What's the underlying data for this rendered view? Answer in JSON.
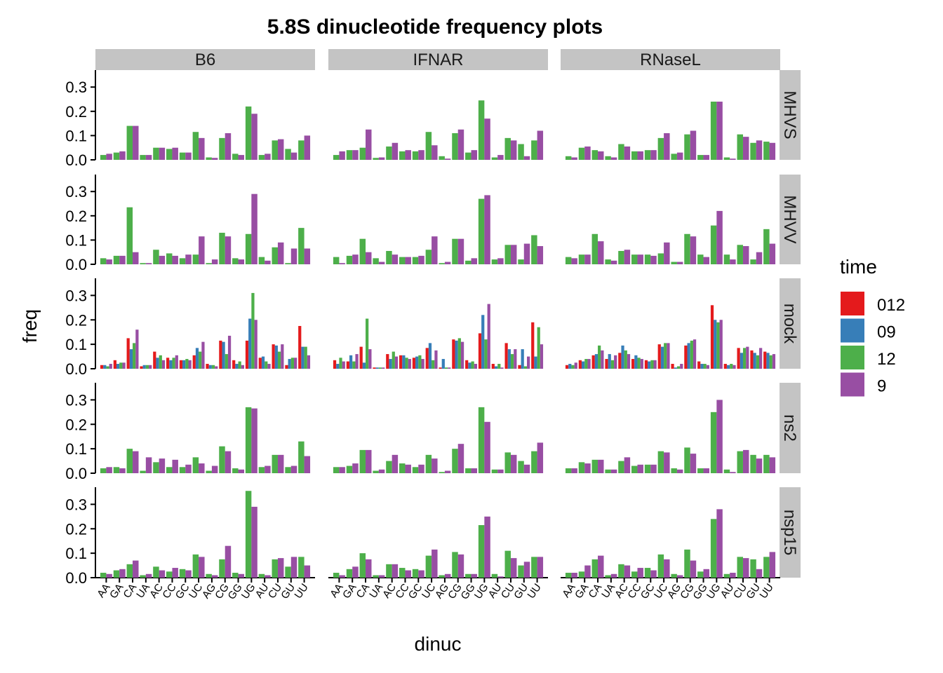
{
  "chart_data": {
    "type": "bar",
    "title": "5.8S dinucleotide frequency plots",
    "xlabel": "dinuc",
    "ylabel": "freq",
    "ylim": [
      0,
      0.37
    ],
    "yticks": [
      0.0,
      0.1,
      0.2,
      0.3
    ],
    "ytick_labels": [
      "0.0",
      "0.1",
      "0.2",
      "0.3"
    ],
    "grid": false,
    "legend_position": "right",
    "legend": {
      "title": "time",
      "entries": [
        {
          "key": "012",
          "label": "012",
          "color": "#E41A1C"
        },
        {
          "key": "09",
          "label": "09",
          "color": "#377EB8"
        },
        {
          "key": "12",
          "label": "12",
          "color": "#4DAF4A"
        },
        {
          "key": "9",
          "label": "9",
          "color": "#984EA3"
        }
      ]
    },
    "col_facets": [
      "B6",
      "IFNAR",
      "RNaseL"
    ],
    "row_facets": [
      "MHVS",
      "MHVV",
      "mock",
      "ns2",
      "nsp15"
    ],
    "categories": [
      "AA",
      "GA",
      "CA",
      "UA",
      "AC",
      "CC",
      "GC",
      "UC",
      "AG",
      "CG",
      "GG",
      "UG",
      "AU",
      "CU",
      "GU",
      "UU"
    ],
    "panels": [
      {
        "row": "MHVS",
        "col": "B6",
        "series": [
          {
            "time": "12",
            "values": [
              0.02,
              0.03,
              0.14,
              0.02,
              0.05,
              0.045,
              0.03,
              0.115,
              0.01,
              0.09,
              0.025,
              0.22,
              0.02,
              0.08,
              0.045,
              0.08
            ]
          },
          {
            "time": "9",
            "values": [
              0.025,
              0.035,
              0.14,
              0.02,
              0.05,
              0.05,
              0.03,
              0.09,
              0.008,
              0.11,
              0.02,
              0.19,
              0.025,
              0.085,
              0.03,
              0.1
            ]
          }
        ]
      },
      {
        "row": "MHVS",
        "col": "IFNAR",
        "series": [
          {
            "time": "12",
            "values": [
              0.02,
              0.04,
              0.05,
              0.008,
              0.055,
              0.035,
              0.035,
              0.115,
              0.015,
              0.11,
              0.03,
              0.245,
              0.01,
              0.09,
              0.065,
              0.08
            ]
          },
          {
            "time": "9",
            "values": [
              0.035,
              0.04,
              0.125,
              0.01,
              0.07,
              0.04,
              0.04,
              0.06,
              0.005,
              0.125,
              0.04,
              0.17,
              0.02,
              0.08,
              0.015,
              0.12
            ]
          }
        ]
      },
      {
        "row": "MHVS",
        "col": "RNaseL",
        "series": [
          {
            "time": "12",
            "values": [
              0.015,
              0.05,
              0.04,
              0.015,
              0.065,
              0.035,
              0.04,
              0.09,
              0.025,
              0.105,
              0.02,
              0.24,
              0.01,
              0.105,
              0.07,
              0.075
            ]
          },
          {
            "time": "9",
            "values": [
              0.01,
              0.055,
              0.035,
              0.01,
              0.055,
              0.035,
              0.04,
              0.11,
              0.03,
              0.12,
              0.02,
              0.24,
              0.005,
              0.095,
              0.08,
              0.07
            ]
          }
        ]
      },
      {
        "row": "MHVV",
        "col": "B6",
        "series": [
          {
            "time": "12",
            "values": [
              0.025,
              0.035,
              0.235,
              0.005,
              0.06,
              0.045,
              0.025,
              0.04,
              0.005,
              0.13,
              0.025,
              0.125,
              0.03,
              0.07,
              0.005,
              0.15
            ]
          },
          {
            "time": "9",
            "values": [
              0.02,
              0.035,
              0.05,
              0.005,
              0.035,
              0.035,
              0.04,
              0.115,
              0.02,
              0.115,
              0.02,
              0.29,
              0.015,
              0.09,
              0.065,
              0.065
            ]
          }
        ]
      },
      {
        "row": "MHVV",
        "col": "IFNAR",
        "series": [
          {
            "time": "12",
            "values": [
              0.03,
              0.035,
              0.105,
              0.025,
              0.055,
              0.03,
              0.03,
              0.06,
              0.005,
              0.105,
              0.015,
              0.27,
              0.02,
              0.08,
              0.02,
              0.12
            ]
          },
          {
            "time": "9",
            "values": [
              0.005,
              0.04,
              0.05,
              0.01,
              0.04,
              0.03,
              0.035,
              0.115,
              0.01,
              0.105,
              0.025,
              0.285,
              0.025,
              0.08,
              0.085,
              0.075
            ]
          }
        ]
      },
      {
        "row": "MHVV",
        "col": "RNaseL",
        "series": [
          {
            "time": "12",
            "values": [
              0.03,
              0.04,
              0.125,
              0.02,
              0.055,
              0.04,
              0.04,
              0.045,
              0.01,
              0.125,
              0.04,
              0.16,
              0.04,
              0.08,
              0.02,
              0.145
            ]
          },
          {
            "time": "9",
            "values": [
              0.025,
              0.04,
              0.095,
              0.015,
              0.06,
              0.04,
              0.035,
              0.09,
              0.01,
              0.115,
              0.03,
              0.22,
              0.02,
              0.075,
              0.05,
              0.085
            ]
          }
        ]
      },
      {
        "row": "mock",
        "col": "B6",
        "series": [
          {
            "time": "012",
            "values": [
              0.015,
              0.035,
              0.125,
              0.01,
              0.07,
              0.045,
              0.035,
              0.055,
              0.02,
              0.115,
              0.035,
              0.115,
              0.045,
              0.1,
              0.015,
              0.175
            ]
          },
          {
            "time": "09",
            "values": [
              0.015,
              0.02,
              0.08,
              0.015,
              0.045,
              0.035,
              0.035,
              0.085,
              0.015,
              0.11,
              0.02,
              0.205,
              0.05,
              0.095,
              0.04,
              0.09
            ]
          },
          {
            "time": "12",
            "values": [
              0.01,
              0.025,
              0.105,
              0.015,
              0.055,
              0.045,
              0.04,
              0.07,
              0.015,
              0.06,
              0.03,
              0.31,
              0.03,
              0.07,
              0.045,
              0.09
            ]
          },
          {
            "time": "9",
            "values": [
              0.02,
              0.025,
              0.16,
              0.015,
              0.035,
              0.055,
              0.035,
              0.11,
              0.01,
              0.135,
              0.015,
              0.2,
              0.02,
              0.1,
              0.045,
              0.055
            ]
          }
        ]
      },
      {
        "row": "mock",
        "col": "IFNAR",
        "series": [
          {
            "time": "012",
            "values": [
              0.035,
              0.03,
              0.09,
              0.005,
              0.06,
              0.055,
              0.045,
              0.085,
              0.005,
              0.12,
              0.035,
              0.145,
              0.02,
              0.105,
              0.015,
              0.19
            ]
          },
          {
            "time": "09",
            "values": [
              0.02,
              0.055,
              0.025,
              0.005,
              0.04,
              0.055,
              0.05,
              0.105,
              0.04,
              0.115,
              0.025,
              0.22,
              0.01,
              0.08,
              0.08,
              0.05
            ]
          },
          {
            "time": "12",
            "values": [
              0.045,
              0.03,
              0.205,
              0.005,
              0.07,
              0.045,
              0.055,
              0.035,
              0.005,
              0.125,
              0.03,
              0.12,
              0.02,
              0.06,
              0.01,
              0.17
            ]
          },
          {
            "time": "9",
            "values": [
              0.03,
              0.06,
              0.08,
              0.005,
              0.05,
              0.04,
              0.04,
              0.075,
              0.005,
              0.11,
              0.02,
              0.265,
              0.005,
              0.08,
              0.05,
              0.1
            ]
          }
        ]
      },
      {
        "row": "mock",
        "col": "RNaseL",
        "series": [
          {
            "time": "012",
            "values": [
              0.015,
              0.035,
              0.055,
              0.04,
              0.065,
              0.04,
              0.035,
              0.1,
              0.02,
              0.095,
              0.03,
              0.26,
              0.02,
              0.085,
              0.075,
              0.07
            ]
          },
          {
            "time": "09",
            "values": [
              0.02,
              0.03,
              0.06,
              0.06,
              0.095,
              0.055,
              0.03,
              0.09,
              0.005,
              0.105,
              0.02,
              0.2,
              0.015,
              0.065,
              0.065,
              0.065
            ]
          },
          {
            "time": "12",
            "values": [
              0.015,
              0.04,
              0.095,
              0.035,
              0.075,
              0.045,
              0.035,
              0.105,
              0.01,
              0.115,
              0.02,
              0.19,
              0.02,
              0.085,
              0.055,
              0.055
            ]
          },
          {
            "time": "9",
            "values": [
              0.025,
              0.04,
              0.075,
              0.055,
              0.06,
              0.04,
              0.035,
              0.105,
              0.02,
              0.12,
              0.015,
              0.2,
              0.015,
              0.09,
              0.085,
              0.06
            ]
          }
        ]
      },
      {
        "row": "ns2",
        "col": "B6",
        "series": [
          {
            "time": "12",
            "values": [
              0.02,
              0.025,
              0.1,
              0.01,
              0.045,
              0.025,
              0.025,
              0.065,
              0.01,
              0.11,
              0.02,
              0.27,
              0.025,
              0.075,
              0.025,
              0.13
            ]
          },
          {
            "time": "9",
            "values": [
              0.025,
              0.02,
              0.09,
              0.065,
              0.06,
              0.055,
              0.035,
              0.04,
              0.03,
              0.09,
              0.015,
              0.265,
              0.03,
              0.075,
              0.03,
              0.07
            ]
          }
        ]
      },
      {
        "row": "ns2",
        "col": "IFNAR",
        "series": [
          {
            "time": "12",
            "values": [
              0.025,
              0.03,
              0.095,
              0.01,
              0.05,
              0.04,
              0.025,
              0.075,
              0.005,
              0.1,
              0.02,
              0.27,
              0.015,
              0.085,
              0.05,
              0.09
            ]
          },
          {
            "time": "9",
            "values": [
              0.025,
              0.04,
              0.095,
              0.015,
              0.075,
              0.035,
              0.035,
              0.06,
              0.01,
              0.12,
              0.02,
              0.21,
              0.015,
              0.075,
              0.035,
              0.125
            ]
          }
        ]
      },
      {
        "row": "ns2",
        "col": "RNaseL",
        "series": [
          {
            "time": "12",
            "values": [
              0.02,
              0.045,
              0.055,
              0.015,
              0.05,
              0.03,
              0.035,
              0.09,
              0.02,
              0.105,
              0.02,
              0.25,
              0.015,
              0.09,
              0.075,
              0.075
            ]
          },
          {
            "time": "9",
            "values": [
              0.02,
              0.04,
              0.055,
              0.015,
              0.065,
              0.035,
              0.035,
              0.085,
              0.015,
              0.08,
              0.02,
              0.3,
              0.005,
              0.095,
              0.06,
              0.065
            ]
          }
        ]
      },
      {
        "row": "nsp15",
        "col": "B6",
        "series": [
          {
            "time": "12",
            "values": [
              0.02,
              0.03,
              0.055,
              0.01,
              0.045,
              0.025,
              0.035,
              0.095,
              0.015,
              0.075,
              0.02,
              0.355,
              0.015,
              0.075,
              0.045,
              0.085
            ]
          },
          {
            "time": "9",
            "values": [
              0.015,
              0.035,
              0.07,
              0.015,
              0.03,
              0.04,
              0.03,
              0.085,
              0.01,
              0.13,
              0.015,
              0.29,
              0.01,
              0.08,
              0.085,
              0.05
            ]
          }
        ]
      },
      {
        "row": "nsp15",
        "col": "IFNAR",
        "series": [
          {
            "time": "12",
            "values": [
              0.02,
              0.035,
              0.1,
              0.01,
              0.055,
              0.04,
              0.035,
              0.09,
              0.01,
              0.105,
              0.015,
              0.215,
              0.015,
              0.11,
              0.05,
              0.085
            ]
          },
          {
            "time": "9",
            "values": [
              0.01,
              0.045,
              0.075,
              0.01,
              0.055,
              0.03,
              0.03,
              0.115,
              0.015,
              0.095,
              0.015,
              0.25,
              0.005,
              0.08,
              0.065,
              0.085
            ]
          }
        ]
      },
      {
        "row": "nsp15",
        "col": "RNaseL",
        "series": [
          {
            "time": "12",
            "values": [
              0.02,
              0.025,
              0.075,
              0.01,
              0.055,
              0.025,
              0.04,
              0.095,
              0.015,
              0.115,
              0.025,
              0.24,
              0.015,
              0.085,
              0.075,
              0.085
            ]
          },
          {
            "time": "9",
            "values": [
              0.02,
              0.05,
              0.09,
              0.015,
              0.05,
              0.04,
              0.03,
              0.075,
              0.01,
              0.07,
              0.035,
              0.28,
              0.02,
              0.08,
              0.035,
              0.105
            ]
          }
        ]
      }
    ]
  }
}
